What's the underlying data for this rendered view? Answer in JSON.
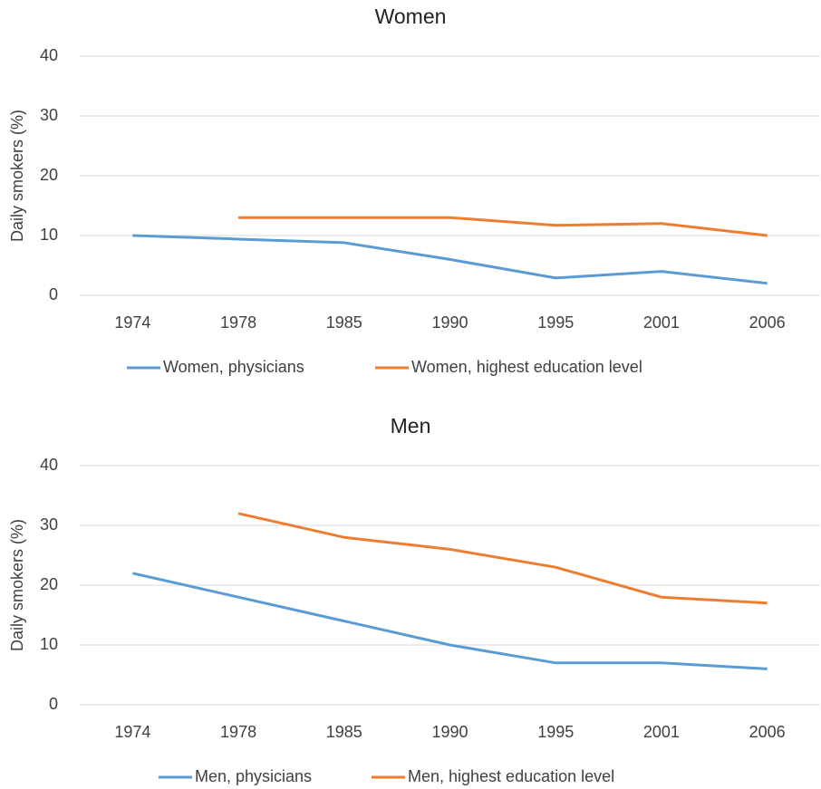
{
  "chart_data": [
    {
      "type": "line",
      "title": "Women",
      "y_label": "Daily smokers (%)",
      "categories": [
        "1974",
        "1978",
        "1985",
        "1990",
        "1995",
        "2001",
        "2006"
      ],
      "series": [
        {
          "name": "Women, physicians",
          "color": "#5b9bd5",
          "values": [
            10,
            9.4,
            8.8,
            6,
            2.9,
            4,
            2
          ]
        },
        {
          "name": "Women, highest education level",
          "color": "#ed7d31",
          "values": [
            null,
            13,
            13,
            13,
            11.7,
            12,
            10
          ]
        }
      ],
      "ylim": [
        0,
        40
      ],
      "yticks": [
        0,
        10,
        20,
        30,
        40
      ],
      "grid": true,
      "legend": "bottom"
    },
    {
      "type": "line",
      "title": "Men",
      "y_label": "Daily smokers (%)",
      "categories": [
        "1974",
        "1978",
        "1985",
        "1990",
        "1995",
        "2001",
        "2006"
      ],
      "series": [
        {
          "name": "Men, physicians",
          "color": "#5b9bd5",
          "values": [
            22,
            18,
            14,
            10,
            7,
            7,
            6
          ]
        },
        {
          "name": "Men, highest education level",
          "color": "#ed7d31",
          "values": [
            null,
            32,
            28,
            26,
            23,
            18,
            17
          ]
        }
      ],
      "ylim": [
        0,
        40
      ],
      "yticks": [
        0,
        10,
        20,
        30,
        40
      ],
      "grid": true,
      "legend": "bottom"
    }
  ]
}
